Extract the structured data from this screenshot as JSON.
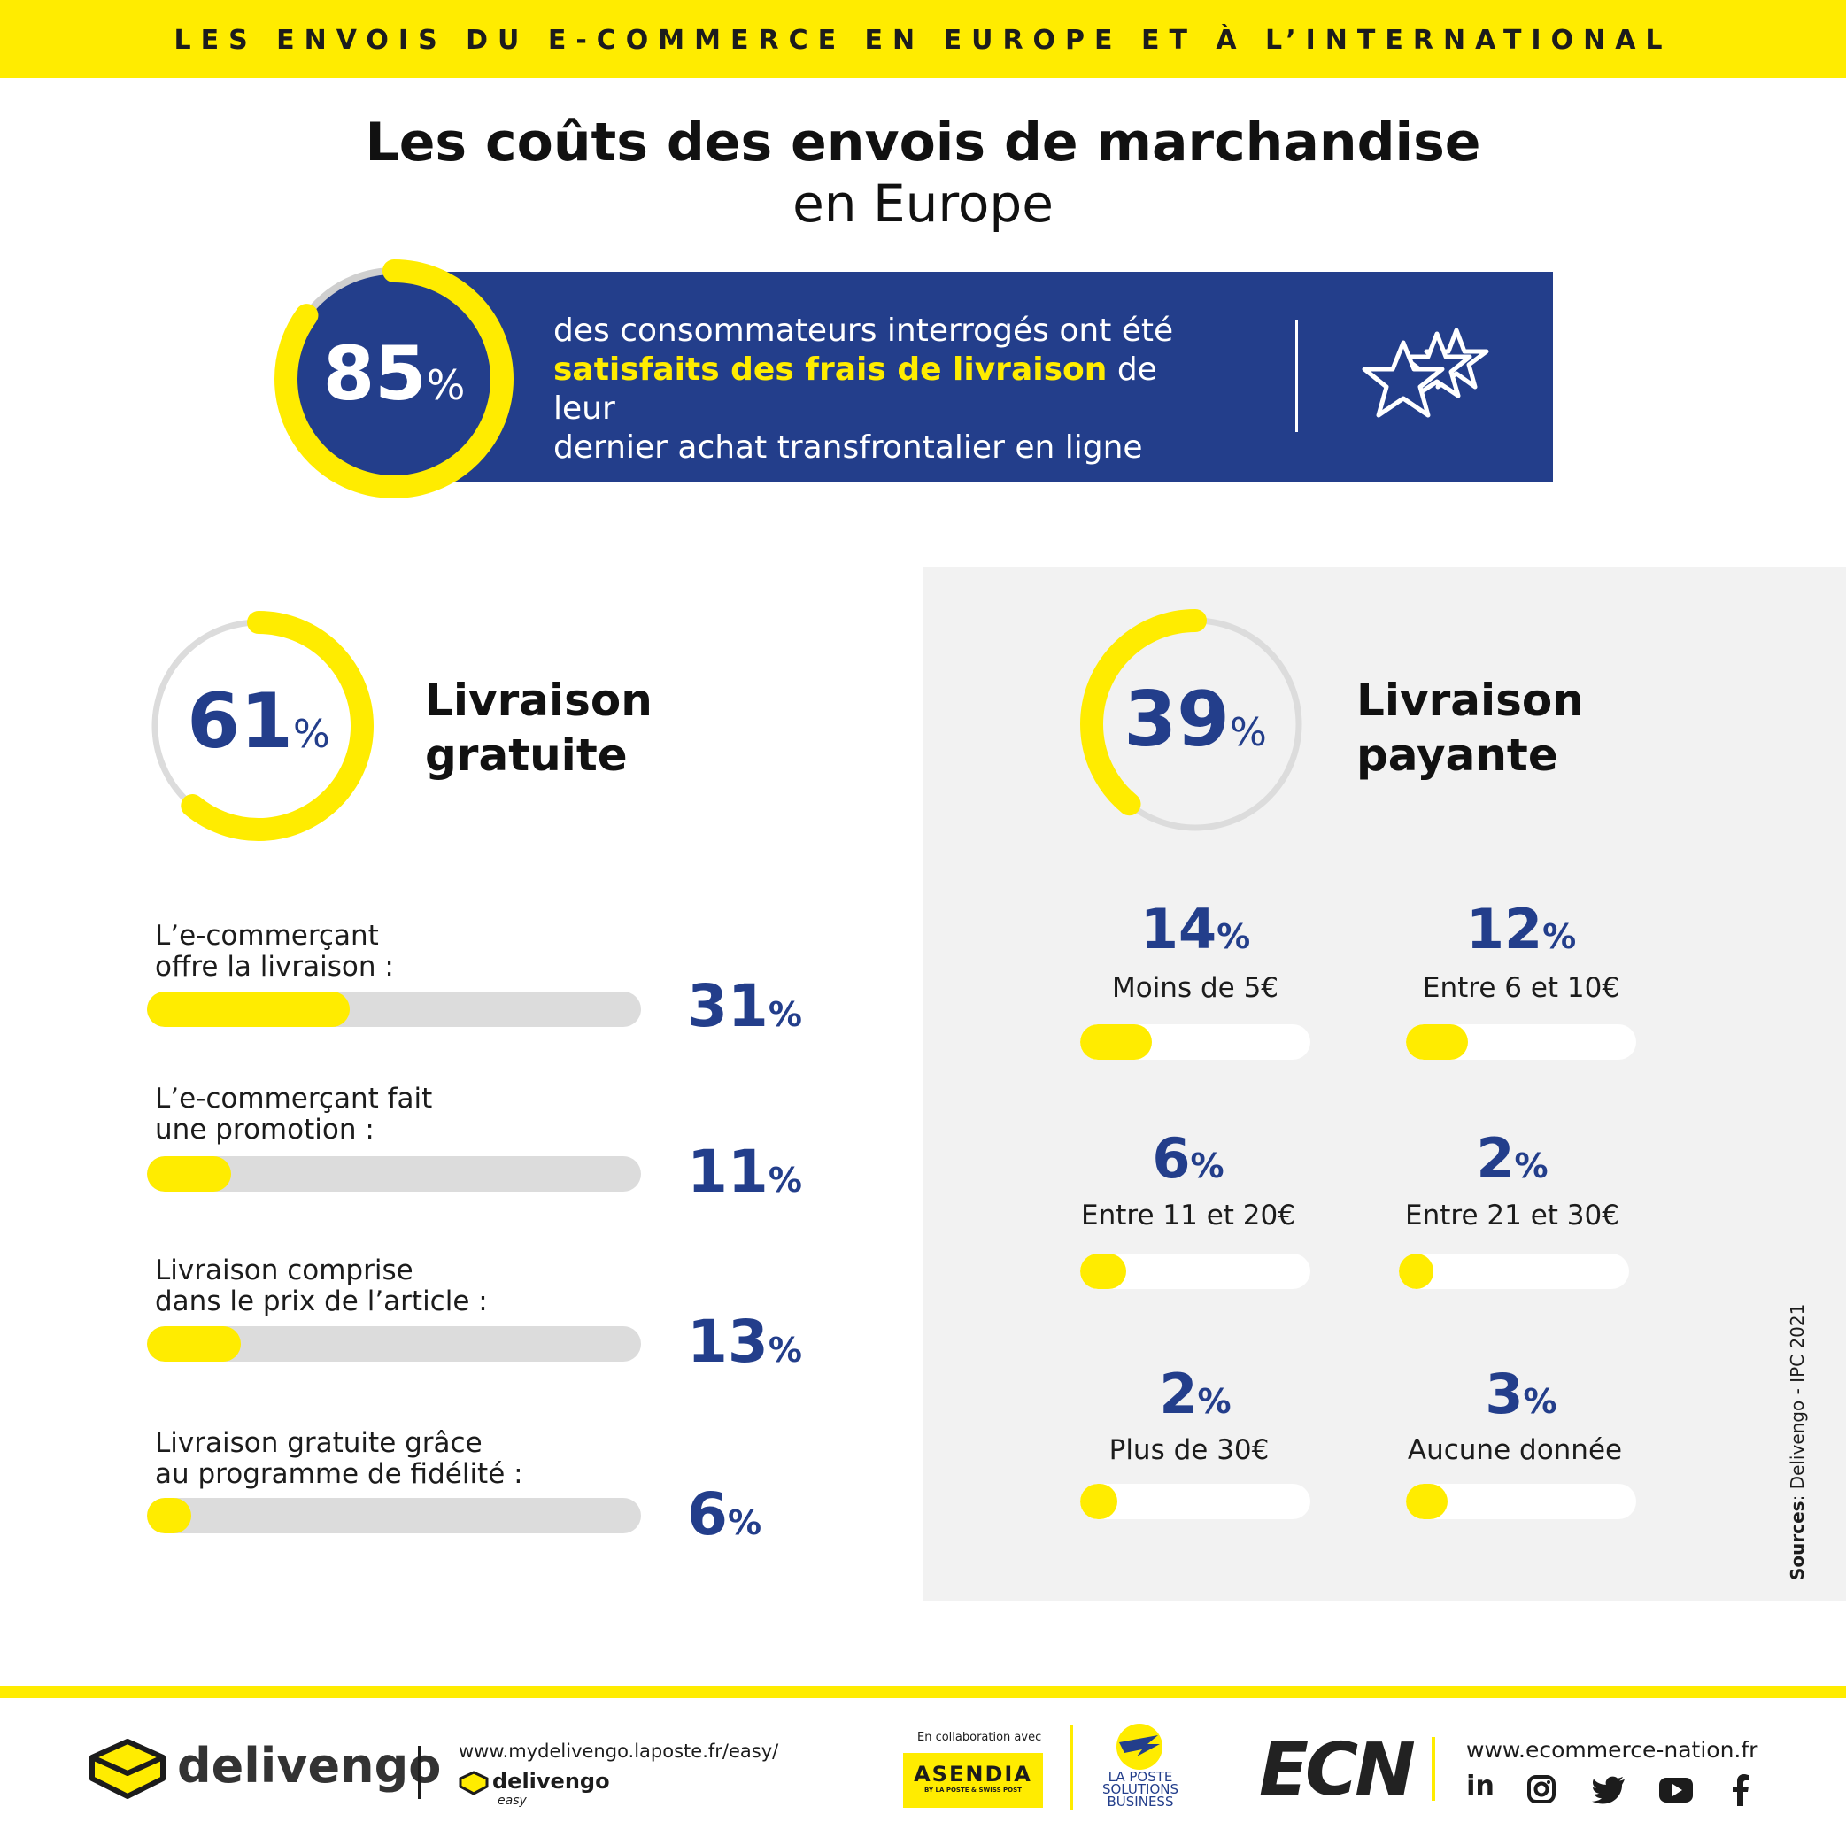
{
  "header": {
    "banner": "LES ENVOIS DU E-COMMERCE EN EUROPE ET À L’INTERNATIONAL"
  },
  "title": {
    "line1": "Les coûts des envois de marchandise",
    "line2": "en Europe"
  },
  "satisfaction": {
    "value": "85",
    "unit": "%",
    "fraction": 0.85,
    "text_before": "des consommateurs interrogés ont été",
    "text_highlight": "satisfaits des frais de livraison",
    "text_after": "de leur",
    "text_line3": "dernier achat transfrontalier en ligne"
  },
  "free_delivery": {
    "value": "61",
    "unit": "%",
    "fraction": 0.61,
    "title_line1": "Livraison",
    "title_line2": "gratuite",
    "items": [
      {
        "label_line1": "L’e-commerçant",
        "label_line2": "offre la livraison :",
        "value": "31",
        "unit": "%",
        "fraction": 0.41
      },
      {
        "label_line1": "L’e-commerçant fait",
        "label_line2": "une promotion :",
        "value": "11",
        "unit": "%",
        "fraction": 0.17
      },
      {
        "label_line1": "Livraison comprise",
        "label_line2": "dans le prix de l’article :",
        "value": "13",
        "unit": "%",
        "fraction": 0.19
      },
      {
        "label_line1": "Livraison gratuite grâce",
        "label_line2": "au programme de fidélité :",
        "value": "6",
        "unit": "%",
        "fraction": 0.09
      }
    ]
  },
  "paid_delivery": {
    "value": "39",
    "unit": "%",
    "fraction": 0.39,
    "title_line1": "Livraison",
    "title_line2": "payante",
    "items": [
      {
        "value": "14",
        "unit": "%",
        "label": "Moins de 5€",
        "fraction": 0.31
      },
      {
        "value": "12",
        "unit": "%",
        "label": "Entre 6 et 10€",
        "fraction": 0.27
      },
      {
        "value": "6",
        "unit": "%",
        "label": "Entre 11 et 20€",
        "fraction": 0.2
      },
      {
        "value": "2",
        "unit": "%",
        "label": "Entre 21 et 30€",
        "fraction": 0.15
      },
      {
        "value": "2",
        "unit": "%",
        "label": "Plus de 30€",
        "fraction": 0.16
      },
      {
        "value": "3",
        "unit": "%",
        "label": "Aucune donnée",
        "fraction": 0.18
      }
    ]
  },
  "sources": {
    "label": "Sources",
    "text": ": Delivengo - IPC 2021"
  },
  "footer": {
    "delivengo_logo": "delivengo",
    "delivengo_url": "www.mydelivengo.laposte.fr/easy/",
    "delivengo_small": "delivengo",
    "delivengo_small_sub": "easy",
    "collab": "En collaboration avec",
    "asendia": "ASENDIA",
    "asendia_sub": "BY LA POSTE & SWISS POST",
    "laposte_line1": "LA POSTE",
    "laposte_line2": "SOLUTIONS",
    "laposte_line3": "BUSINESS",
    "ecn": "ECN",
    "ecn_url": "www.ecommerce-nation.fr",
    "social": [
      "linkedin-icon",
      "instagram-icon",
      "twitter-icon",
      "youtube-icon",
      "facebook-icon"
    ]
  },
  "colors": {
    "yellow": "#ffec00",
    "blue": "#233e8b",
    "grey": "#dcdcdc",
    "panel": "#f2f2f2"
  }
}
